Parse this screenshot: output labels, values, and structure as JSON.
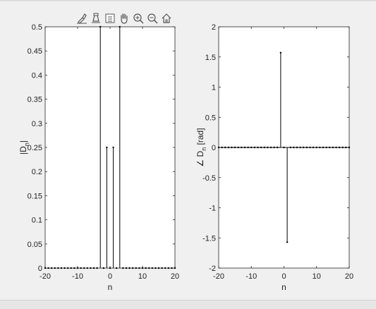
{
  "toolbar": {
    "icons": [
      "brush-icon",
      "data-tips-icon",
      "legend-icon",
      "pan-hand-icon",
      "zoom-in-icon",
      "zoom-out-icon",
      "home-icon"
    ]
  },
  "colors": {
    "stem": "#000000",
    "axes_bg": "#ffffff",
    "figure_bg": "#f0f0f0",
    "axis": "#262626"
  },
  "chart_data": [
    {
      "type": "stem",
      "xlabel": "n",
      "ylabel_main": "|D",
      "ylabel_sub": "n",
      "ylabel_end": "|",
      "xlim": [
        -20,
        20
      ],
      "ylim": [
        0,
        0.5
      ],
      "xticks": [
        -20,
        -10,
        0,
        10,
        20
      ],
      "yticks": [
        0,
        0.05,
        0.1,
        0.15,
        0.2,
        0.25,
        0.3,
        0.35,
        0.4,
        0.45,
        0.5
      ],
      "ytick_labels": [
        "0",
        "0.05",
        "0.1",
        "0.15",
        "0.2",
        "0.25",
        "0.3",
        "0.35",
        "0.4",
        "0.45",
        "0.5"
      ],
      "x": [
        -20,
        -19,
        -18,
        -17,
        -16,
        -15,
        -14,
        -13,
        -12,
        -11,
        -10,
        -9,
        -8,
        -7,
        -6,
        -5,
        -4,
        -3,
        -2,
        -1,
        0,
        1,
        2,
        3,
        4,
        5,
        6,
        7,
        8,
        9,
        10,
        11,
        12,
        13,
        14,
        15,
        16,
        17,
        18,
        19,
        20
      ],
      "values": [
        0,
        0,
        0,
        0,
        0,
        0,
        0,
        0,
        0,
        0,
        0,
        0,
        0,
        0,
        0,
        0,
        0,
        0.5,
        0,
        0.25,
        0,
        0.25,
        0,
        0.5,
        0,
        0,
        0,
        0,
        0,
        0,
        0,
        0,
        0,
        0,
        0,
        0,
        0,
        0,
        0,
        0,
        0
      ],
      "grid": false
    },
    {
      "type": "stem",
      "xlabel": "n",
      "ylabel_main": "∠ D",
      "ylabel_sub": "n",
      "ylabel_end": " [rad]",
      "xlim": [
        -20,
        20
      ],
      "ylim": [
        -2,
        2
      ],
      "xticks": [
        -20,
        -10,
        0,
        10,
        20
      ],
      "yticks": [
        -2,
        -1.5,
        -1,
        -0.5,
        0,
        0.5,
        1,
        1.5,
        2
      ],
      "ytick_labels": [
        "-2",
        "-1.5",
        "-1",
        "-0.5",
        "0",
        "0.5",
        "1",
        "1.5",
        "2"
      ],
      "x": [
        -20,
        -19,
        -18,
        -17,
        -16,
        -15,
        -14,
        -13,
        -12,
        -11,
        -10,
        -9,
        -8,
        -7,
        -6,
        -5,
        -4,
        -3,
        -2,
        -1,
        0,
        1,
        2,
        3,
        4,
        5,
        6,
        7,
        8,
        9,
        10,
        11,
        12,
        13,
        14,
        15,
        16,
        17,
        18,
        19,
        20
      ],
      "values": [
        0,
        0,
        0,
        0,
        0,
        0,
        0,
        0,
        0,
        0,
        0,
        0,
        0,
        0,
        0,
        0,
        0,
        0,
        0,
        1.5708,
        0,
        -1.5708,
        0,
        0,
        0,
        0,
        0,
        0,
        0,
        0,
        0,
        0,
        0,
        0,
        0,
        0,
        0,
        0,
        0,
        0,
        0
      ],
      "grid": false
    }
  ]
}
